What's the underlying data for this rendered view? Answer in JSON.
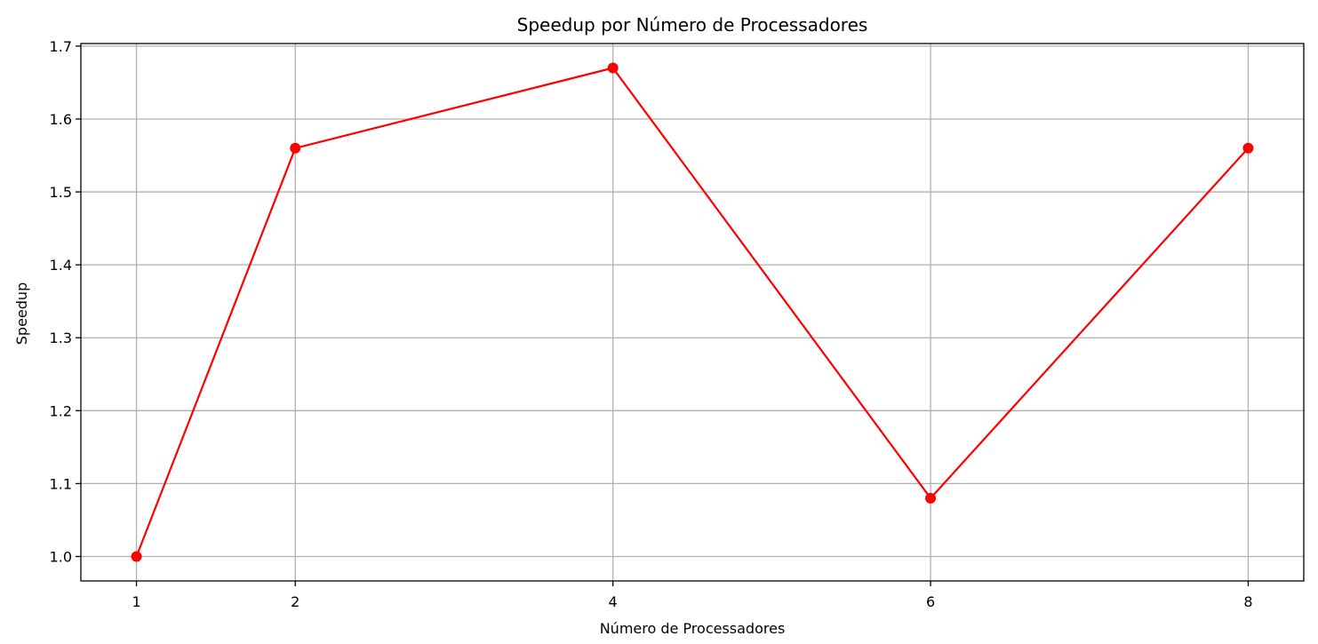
{
  "chart_data": {
    "type": "line",
    "title": "Speedup por Número de Processadores",
    "xlabel": "Número de Processadores",
    "ylabel": "Speedup",
    "x": [
      1,
      2,
      4,
      6,
      8
    ],
    "series": [
      {
        "name": "Speedup",
        "values": [
          1.0,
          1.56,
          1.67,
          1.08,
          1.56
        ],
        "color": "#ff0000",
        "marker": "circle"
      }
    ],
    "xticks": [
      1,
      2,
      4,
      6,
      8
    ],
    "xtick_labels": [
      "1",
      "2",
      "4",
      "6",
      "8"
    ],
    "yticks": [
      1.0,
      1.1,
      1.2,
      1.3,
      1.4,
      1.5,
      1.6,
      1.7
    ],
    "ytick_labels": [
      "1.0",
      "1.1",
      "1.2",
      "1.3",
      "1.4",
      "1.5",
      "1.6",
      "1.7"
    ],
    "xlim": [
      0.65,
      8.35
    ],
    "ylim": [
      0.9665,
      1.7035
    ],
    "grid": true
  }
}
